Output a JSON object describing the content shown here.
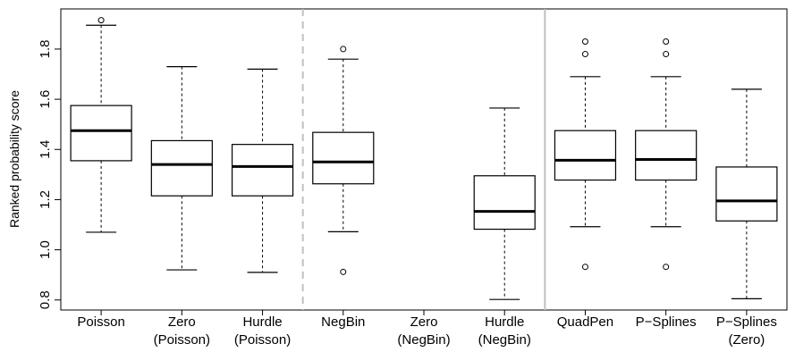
{
  "chart_data": {
    "type": "boxplot",
    "ylabel": "Ranked probability score",
    "ylim": [
      0.76,
      1.96
    ],
    "yticks": [
      0.8,
      1.0,
      1.2,
      1.4,
      1.6,
      1.8
    ],
    "ytick_labels": [
      "0.8",
      "1.0",
      "1.2",
      "1.4",
      "1.6",
      "1.8"
    ],
    "grid": false,
    "categories": [
      {
        "line1": "Poisson",
        "line2": ""
      },
      {
        "line1": "Zero",
        "line2": "(Poisson)"
      },
      {
        "line1": "Hurdle",
        "line2": "(Poisson)"
      },
      {
        "line1": "NegBin",
        "line2": ""
      },
      {
        "line1": "Zero",
        "line2": "(NegBin)"
      },
      {
        "line1": "Hurdle",
        "line2": "(NegBin)"
      },
      {
        "line1": "QuadPen",
        "line2": ""
      },
      {
        "line1": "P−Splines",
        "line2": ""
      },
      {
        "line1": "P−Splines",
        "line2": "(Zero)"
      }
    ],
    "boxes": [
      {
        "whisker_low": 1.07,
        "q1": 1.355,
        "median": 1.475,
        "q3": 1.575,
        "whisker_high": 1.895,
        "outliers": [
          1.915
        ]
      },
      {
        "whisker_low": 0.92,
        "q1": 1.215,
        "median": 1.34,
        "q3": 1.435,
        "whisker_high": 1.73,
        "outliers": []
      },
      {
        "whisker_low": 0.91,
        "q1": 1.215,
        "median": 1.332,
        "q3": 1.42,
        "whisker_high": 1.72,
        "outliers": []
      },
      {
        "whisker_low": 1.072,
        "q1": 1.263,
        "median": 1.35,
        "q3": 1.468,
        "whisker_high": 1.76,
        "outliers": [
          1.8,
          0.912
        ]
      },
      null,
      {
        "whisker_low": 0.802,
        "q1": 1.082,
        "median": 1.153,
        "q3": 1.295,
        "whisker_high": 1.565,
        "outliers": []
      },
      {
        "whisker_low": 1.092,
        "q1": 1.278,
        "median": 1.357,
        "q3": 1.475,
        "whisker_high": 1.69,
        "outliers": [
          1.83,
          1.78,
          0.932
        ]
      },
      {
        "whisker_low": 1.092,
        "q1": 1.278,
        "median": 1.36,
        "q3": 1.475,
        "whisker_high": 1.69,
        "outliers": [
          1.83,
          1.78,
          0.932
        ]
      },
      {
        "whisker_low": 0.805,
        "q1": 1.115,
        "median": 1.195,
        "q3": 1.33,
        "whisker_high": 1.64,
        "outliers": []
      }
    ],
    "separators": [
      {
        "after_index": 3,
        "style": "dashed",
        "color": "#c0c0c0"
      },
      {
        "after_index": 6,
        "style": "solid",
        "color": "#c0c0c0"
      }
    ]
  }
}
